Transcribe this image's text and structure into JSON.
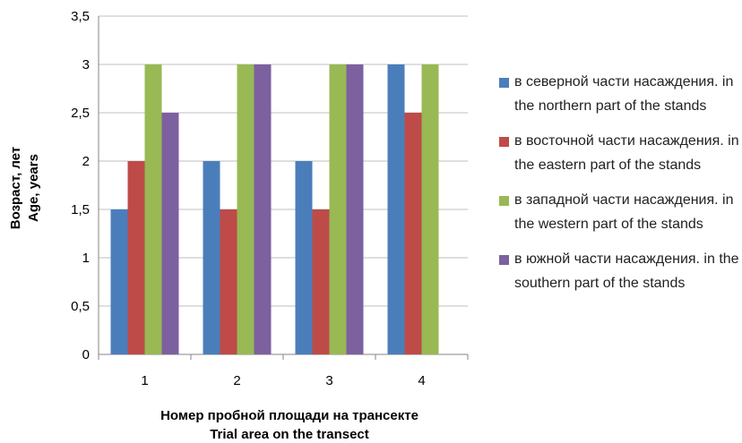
{
  "chart_data": {
    "type": "bar",
    "title": "",
    "xlabel": "Номер пробной площади на трансекте",
    "xlabel_en": "Trial area on the transect",
    "ylabel": "Возраст, лет",
    "ylabel_en": "Age, years",
    "categories": [
      "1",
      "2",
      "3",
      "4"
    ],
    "ylim": [
      0,
      3.5
    ],
    "yticks": [
      "0",
      "0,5",
      "1",
      "1,5",
      "2",
      "2,5",
      "3",
      "3,5"
    ],
    "grid": true,
    "legend_position": "right",
    "series": [
      {
        "name": "в северной части насаждения. in the northern part of the stands",
        "color": "#4a7ebb",
        "values": [
          1.5,
          2,
          2,
          3
        ]
      },
      {
        "name": "в восточной части насаждения. in the eastern part of the stands",
        "color": "#be4b48",
        "values": [
          2,
          1.5,
          1.5,
          2.5
        ]
      },
      {
        "name": "в западной части насаждения. in the western part of the stands",
        "color": "#98b954",
        "values": [
          3,
          3,
          3,
          3
        ]
      },
      {
        "name": "в южной части насаждения. in the southern part of the stands",
        "color": "#7d60a0",
        "values": [
          2.5,
          3,
          3,
          0
        ]
      }
    ]
  }
}
